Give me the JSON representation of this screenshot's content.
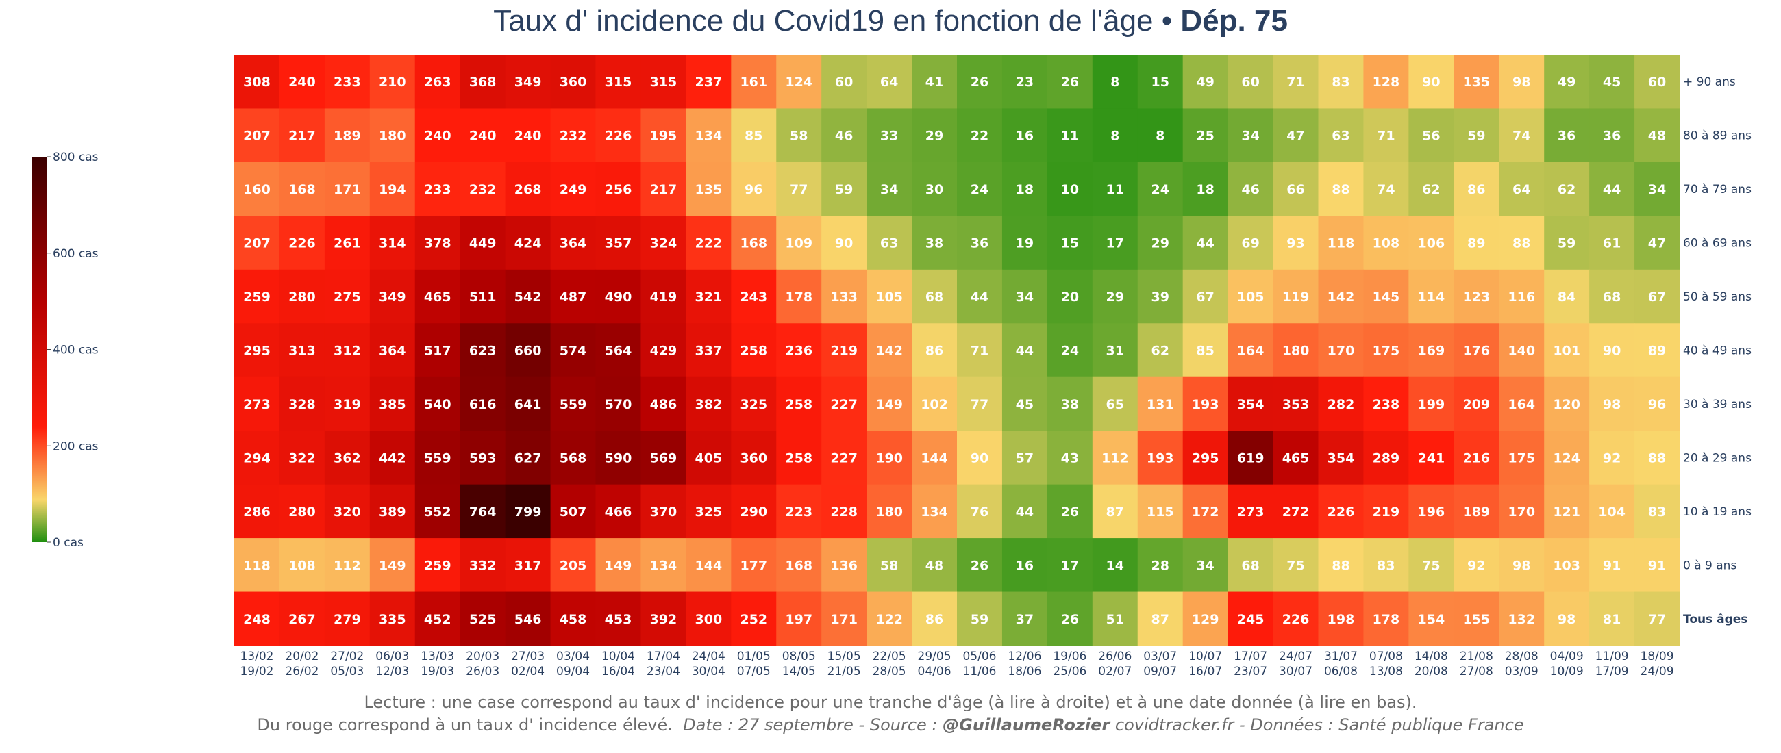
{
  "title": {
    "main": "Taux d' incidence du Covid19 en fonction de l'âge •",
    "dept": "Dép. 75"
  },
  "footer": {
    "line1": "Lecture : une case correspond au taux d' incidence pour une tranche d'âge (à lire à droite) et à une date donnée (à lire en bas).",
    "line2a": "Du rouge correspond à un taux d' incidence élevé.",
    "line2b": "Date : 27 septembre - Source :",
    "author": "@GuillaumeRozier",
    "line2c": "covidtracker.fr - Données : Santé publique France"
  },
  "colors": {
    "scale": [
      "#1f8f0f",
      "#f9d66b",
      "#ff1c0a",
      "#b60000",
      "#3b0000"
    ],
    "text": "#ffffff",
    "axis_text": "#2a3f5f"
  },
  "chart_data": {
    "type": "heatmap",
    "title": "Taux d' incidence du Covid19 en fonction de l'âge • Dép. 75",
    "zmin": 0,
    "zmax": 800,
    "colorbar": {
      "tick_values": [
        0,
        200,
        400,
        600,
        800
      ],
      "tick_labels": [
        "0 cas",
        "200 cas",
        "400 cas",
        "600 cas",
        "800 cas"
      ],
      "placement": "left"
    },
    "columns": [
      {
        "l1": "13/02",
        "l2": "19/02"
      },
      {
        "l1": "20/02",
        "l2": "26/02"
      },
      {
        "l1": "27/02",
        "l2": "05/03"
      },
      {
        "l1": "06/03",
        "l2": "12/03"
      },
      {
        "l1": "13/03",
        "l2": "19/03"
      },
      {
        "l1": "20/03",
        "l2": "26/03"
      },
      {
        "l1": "27/03",
        "l2": "02/04"
      },
      {
        "l1": "03/04",
        "l2": "09/04"
      },
      {
        "l1": "10/04",
        "l2": "16/04"
      },
      {
        "l1": "17/04",
        "l2": "23/04"
      },
      {
        "l1": "24/04",
        "l2": "30/04"
      },
      {
        "l1": "01/05",
        "l2": "07/05"
      },
      {
        "l1": "08/05",
        "l2": "14/05"
      },
      {
        "l1": "15/05",
        "l2": "21/05"
      },
      {
        "l1": "22/05",
        "l2": "28/05"
      },
      {
        "l1": "29/05",
        "l2": "04/06"
      },
      {
        "l1": "05/06",
        "l2": "11/06"
      },
      {
        "l1": "12/06",
        "l2": "18/06"
      },
      {
        "l1": "19/06",
        "l2": "25/06"
      },
      {
        "l1": "26/06",
        "l2": "02/07"
      },
      {
        "l1": "03/07",
        "l2": "09/07"
      },
      {
        "l1": "10/07",
        "l2": "16/07"
      },
      {
        "l1": "17/07",
        "l2": "23/07"
      },
      {
        "l1": "24/07",
        "l2": "30/07"
      },
      {
        "l1": "31/07",
        "l2": "06/08"
      },
      {
        "l1": "07/08",
        "l2": "13/08"
      },
      {
        "l1": "14/08",
        "l2": "20/08"
      },
      {
        "l1": "21/08",
        "l2": "27/08"
      },
      {
        "l1": "28/08",
        "l2": "03/09"
      },
      {
        "l1": "04/09",
        "l2": "10/09"
      },
      {
        "l1": "11/09",
        "l2": "17/09"
      },
      {
        "l1": "18/09",
        "l2": "24/09"
      }
    ],
    "rows": [
      {
        "label": "+ 90 ans",
        "bold": false,
        "values": [
          308,
          240,
          233,
          210,
          263,
          368,
          349,
          360,
          315,
          315,
          237,
          161,
          124,
          60,
          64,
          41,
          26,
          23,
          26,
          8,
          15,
          49,
          60,
          71,
          83,
          128,
          90,
          135,
          98,
          49,
          45,
          60
        ]
      },
      {
        "label": "80 à 89 ans",
        "bold": false,
        "values": [
          207,
          217,
          189,
          180,
          240,
          240,
          240,
          232,
          226,
          195,
          134,
          85,
          58,
          46,
          33,
          29,
          22,
          16,
          11,
          8,
          8,
          25,
          34,
          47,
          63,
          71,
          56,
          59,
          74,
          36,
          36,
          48
        ]
      },
      {
        "label": "70 à 79 ans",
        "bold": false,
        "values": [
          160,
          168,
          171,
          194,
          233,
          232,
          268,
          249,
          256,
          217,
          135,
          96,
          77,
          59,
          34,
          30,
          24,
          18,
          10,
          11,
          24,
          18,
          46,
          66,
          88,
          74,
          62,
          86,
          64,
          62,
          44,
          34
        ]
      },
      {
        "label": "60 à 69 ans",
        "bold": false,
        "values": [
          207,
          226,
          261,
          314,
          378,
          449,
          424,
          364,
          357,
          324,
          222,
          168,
          109,
          90,
          63,
          38,
          36,
          19,
          15,
          17,
          29,
          44,
          69,
          93,
          118,
          108,
          106,
          89,
          88,
          59,
          61,
          47
        ]
      },
      {
        "label": "50 à 59 ans",
        "bold": false,
        "values": [
          259,
          280,
          275,
          349,
          465,
          511,
          542,
          487,
          490,
          419,
          321,
          243,
          178,
          133,
          105,
          68,
          44,
          34,
          20,
          29,
          39,
          67,
          105,
          119,
          142,
          145,
          114,
          123,
          116,
          84,
          68,
          67
        ]
      },
      {
        "label": "40 à 49 ans",
        "bold": false,
        "values": [
          295,
          313,
          312,
          364,
          517,
          623,
          660,
          574,
          564,
          429,
          337,
          258,
          236,
          219,
          142,
          86,
          71,
          44,
          24,
          31,
          62,
          85,
          164,
          180,
          170,
          175,
          169,
          176,
          140,
          101,
          90,
          89
        ]
      },
      {
        "label": "30 à 39 ans",
        "bold": false,
        "values": [
          273,
          328,
          319,
          385,
          540,
          616,
          641,
          559,
          570,
          486,
          382,
          325,
          258,
          227,
          149,
          102,
          77,
          45,
          38,
          65,
          131,
          193,
          354,
          353,
          282,
          238,
          199,
          209,
          164,
          120,
          98,
          96
        ]
      },
      {
        "label": "20 à 29 ans",
        "bold": false,
        "values": [
          294,
          322,
          362,
          442,
          559,
          593,
          627,
          568,
          590,
          569,
          405,
          360,
          258,
          227,
          190,
          144,
          90,
          57,
          43,
          112,
          193,
          295,
          619,
          465,
          354,
          289,
          241,
          216,
          175,
          124,
          92,
          88
        ]
      },
      {
        "label": "10 à 19 ans",
        "bold": false,
        "values": [
          286,
          280,
          320,
          389,
          552,
          764,
          799,
          507,
          466,
          370,
          325,
          290,
          223,
          228,
          180,
          134,
          76,
          44,
          26,
          87,
          115,
          172,
          273,
          272,
          226,
          219,
          196,
          189,
          170,
          121,
          104,
          83
        ]
      },
      {
        "label": "0 à 9 ans",
        "bold": false,
        "values": [
          118,
          108,
          112,
          149,
          259,
          332,
          317,
          205,
          149,
          134,
          144,
          177,
          168,
          136,
          58,
          48,
          26,
          16,
          17,
          14,
          28,
          34,
          68,
          75,
          88,
          83,
          75,
          92,
          98,
          103,
          91,
          91
        ]
      },
      {
        "label": "Tous âges",
        "bold": true,
        "values": [
          248,
          267,
          279,
          335,
          452,
          525,
          546,
          458,
          453,
          392,
          300,
          252,
          197,
          171,
          122,
          86,
          59,
          37,
          26,
          51,
          87,
          129,
          245,
          226,
          198,
          178,
          154,
          155,
          132,
          98,
          81,
          77
        ]
      }
    ]
  }
}
